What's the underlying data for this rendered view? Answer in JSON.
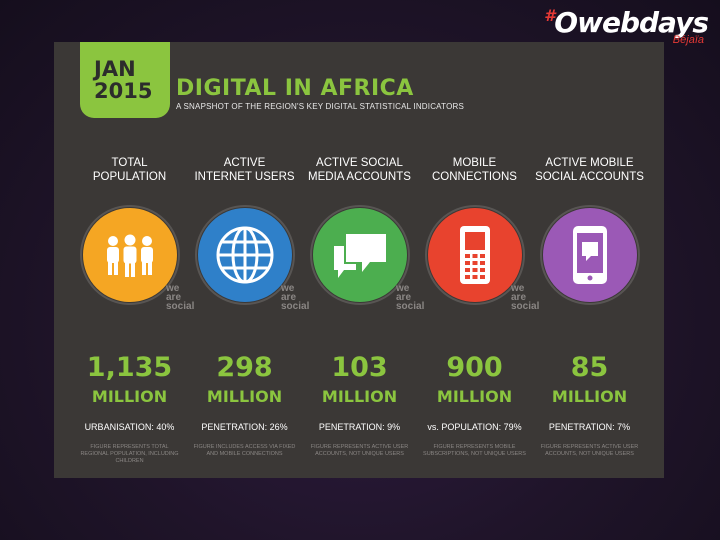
{
  "logo": {
    "hash": "#",
    "brand": "Owebdays",
    "city": "Béjaïa"
  },
  "badge": {
    "month": "JAN",
    "year": "2015"
  },
  "title": "DIGITAL IN AFRICA",
  "subtitle": "A SNAPSHOT OF THE REGION'S KEY DIGITAL STATISTICAL INDICATORS",
  "watermark": [
    "we",
    "are",
    "social"
  ],
  "columns": [
    {
      "label_1": "TOTAL",
      "label_2": "POPULATION",
      "icon": "people-icon",
      "color": "#f5a623",
      "value": "1,135",
      "unit": "MILLION",
      "stat": "URBANISATION: 40%",
      "note": "FIGURE REPRESENTS TOTAL REGIONAL POPULATION, INCLUDING CHILDREN"
    },
    {
      "label_1": "ACTIVE",
      "label_2": "INTERNET USERS",
      "icon": "globe-icon",
      "color": "#2f80c9",
      "value": "298",
      "unit": "MILLION",
      "stat": "PENETRATION: 26%",
      "note": "FIGURE INCLUDES ACCESS VIA FIXED AND MOBILE CONNECTIONS"
    },
    {
      "label_1": "ACTIVE SOCIAL",
      "label_2": "MEDIA ACCOUNTS",
      "icon": "chat-bubbles-icon",
      "color": "#4cae4f",
      "value": "103",
      "unit": "MILLION",
      "stat": "PENETRATION: 9%",
      "note": "FIGURE REPRESENTS ACTIVE USER ACCOUNTS, NOT UNIQUE USERS"
    },
    {
      "label_1": "MOBILE",
      "label_2": "CONNECTIONS",
      "icon": "mobile-phone-icon",
      "color": "#e8432e",
      "value": "900",
      "unit": "MILLION",
      "stat": "vs. POPULATION: 79%",
      "note": "FIGURE REPRESENTS MOBILE SUBSCRIPTIONS, NOT UNIQUE USERS"
    },
    {
      "label_1": "ACTIVE MOBILE",
      "label_2": "SOCIAL ACCOUNTS",
      "icon": "smartphone-chat-icon",
      "color": "#9b59b6",
      "value": "85",
      "unit": "MILLION",
      "stat": "PENETRATION: 7%",
      "note": "FIGURE REPRESENTS ACTIVE USER ACCOUNTS, NOT UNIQUE USERS"
    }
  ]
}
